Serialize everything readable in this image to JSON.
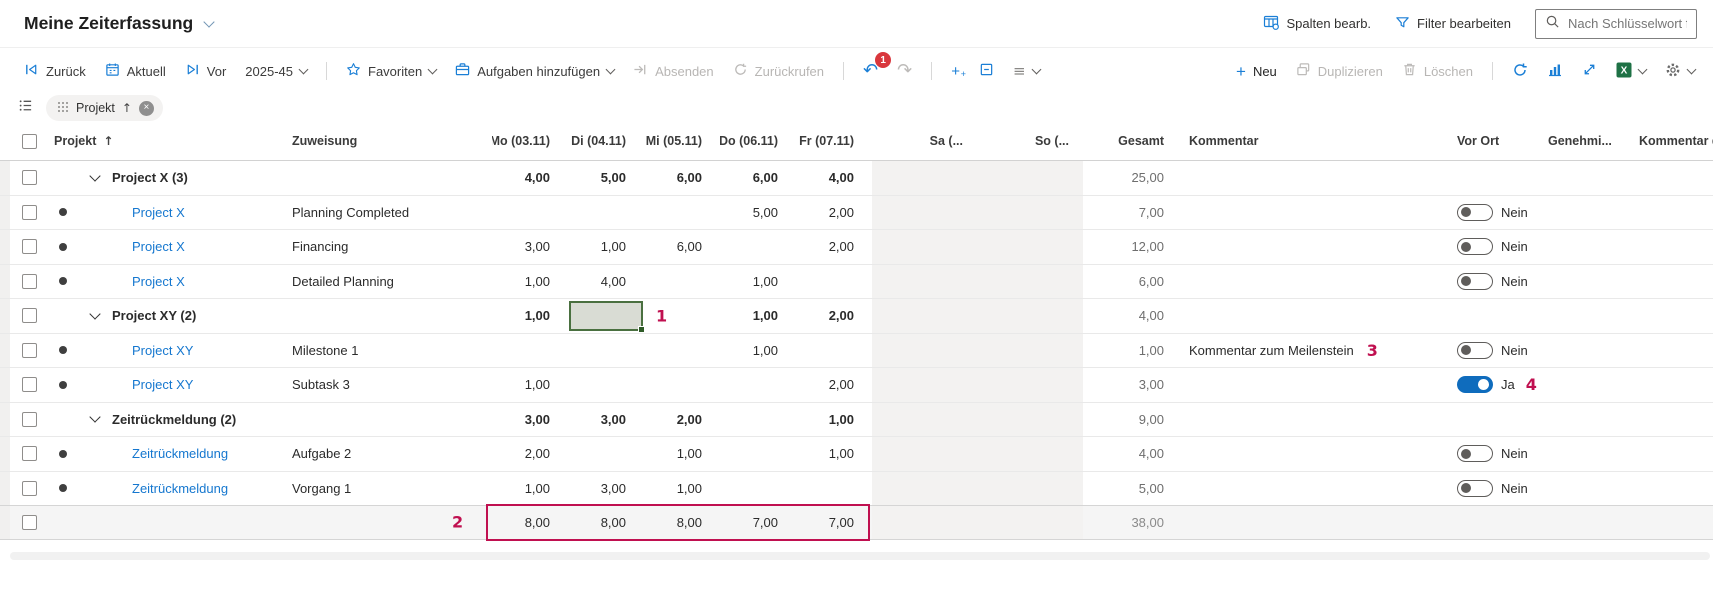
{
  "topbar": {
    "title": "Meine Zeiterfassung",
    "edit_columns": "Spalten bearb.",
    "edit_filter": "Filter bearbeiten",
    "search_placeholder": "Nach Schlüsselwort fi..."
  },
  "toolbar": {
    "back": "Zurück",
    "current": "Aktuell",
    "forward": "Vor",
    "period": "2025-45",
    "favorites": "Favoriten",
    "add_tasks": "Aufgaben hinzufügen",
    "submit": "Absenden",
    "recall": "Zurückrufen",
    "undo_badge": "1",
    "new": "Neu",
    "duplicate": "Duplizieren",
    "delete": "Löschen"
  },
  "icons": {
    "undo": "↶",
    "redo": "↷",
    "list": "≡",
    "plus": "+",
    "sort_asc": "↑",
    "close": "×"
  },
  "filter": {
    "chip_label": "Projekt"
  },
  "colors": {
    "accent": "#1b7fd6",
    "link": "#1577cf",
    "toggle_on": "#0f6cbd",
    "annotation": "#c01050",
    "badge": "#d9373d",
    "selected_cell_border": "#4a7040",
    "weekend_bg": "#f3f2f1"
  },
  "table": {
    "headers": {
      "project": "Projekt",
      "zuweisung": "Zuweisung",
      "days": [
        "Mo (03.11)",
        "Di (04.11)",
        "Mi (05.11)",
        "Do (06.11)",
        "Fr (07.11)"
      ],
      "sa": "Sa (...",
      "so": "So (...",
      "gesamt": "Gesamt",
      "kommentar": "Kommentar",
      "vor_ort": "Vor Ort",
      "genehmigt": "Genehmi...",
      "kommentar_de": "Kommentar de"
    },
    "rows": [
      {
        "type": "group",
        "label": "Project X (3)",
        "days": [
          "4,00",
          "5,00",
          "6,00",
          "6,00",
          "4,00"
        ],
        "gesamt": "25,00"
      },
      {
        "type": "task",
        "project": "Project X",
        "zuweisung": "Planning Completed",
        "days": [
          "",
          "",
          "",
          "5,00",
          "2,00"
        ],
        "gesamt": "7,00",
        "vor_ort": "Nein"
      },
      {
        "type": "task",
        "project": "Project X",
        "zuweisung": "Financing",
        "days": [
          "3,00",
          "1,00",
          "6,00",
          "",
          "2,00"
        ],
        "gesamt": "12,00",
        "vor_ort": "Nein"
      },
      {
        "type": "task",
        "project": "Project X",
        "zuweisung": "Detailed Planning",
        "days": [
          "1,00",
          "4,00",
          "",
          "1,00",
          ""
        ],
        "gesamt": "6,00",
        "vor_ort": "Nein"
      },
      {
        "type": "group",
        "label": "Project XY (2)",
        "days": [
          "1,00",
          "",
          "",
          "1,00",
          "2,00"
        ],
        "gesamt": "4,00",
        "selected_day": 1,
        "annotation": "1"
      },
      {
        "type": "task",
        "project": "Project XY",
        "zuweisung": "Milestone 1",
        "days": [
          "",
          "",
          "",
          "1,00",
          ""
        ],
        "gesamt": "1,00",
        "kommentar": "Kommentar zum Meilenstein",
        "kommentar_annotation": "3",
        "vor_ort": "Nein"
      },
      {
        "type": "task",
        "project": "Project XY",
        "zuweisung": "Subtask 3",
        "days": [
          "1,00",
          "",
          "",
          "",
          "2,00"
        ],
        "gesamt": "3,00",
        "vor_ort": "Ja",
        "vor_ort_annotation": "4"
      },
      {
        "type": "group",
        "label": "Zeitrückmeldung (2)",
        "days": [
          "3,00",
          "3,00",
          "2,00",
          "",
          "1,00"
        ],
        "gesamt": "9,00"
      },
      {
        "type": "task",
        "project": "Zeitrückmeldung",
        "zuweisung": "Aufgabe 2",
        "days": [
          "2,00",
          "",
          "1,00",
          "",
          "1,00"
        ],
        "gesamt": "4,00",
        "vor_ort": "Nein"
      },
      {
        "type": "task",
        "project": "Zeitrückmeldung",
        "zuweisung": "Vorgang 1",
        "days": [
          "1,00",
          "3,00",
          "1,00",
          "",
          ""
        ],
        "gesamt": "5,00",
        "vor_ort": "Nein"
      },
      {
        "type": "total",
        "days": [
          "8,00",
          "8,00",
          "8,00",
          "7,00",
          "7,00"
        ],
        "gesamt": "38,00",
        "annotation": "2",
        "highlight_box": true
      }
    ]
  }
}
